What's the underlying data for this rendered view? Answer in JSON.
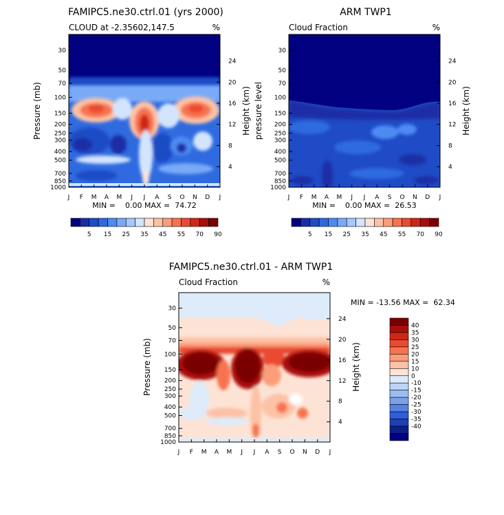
{
  "chart_data": [
    {
      "type": "heatmap",
      "title": "FAMIPC5.ne30.ctrl.01 (yrs 2000)",
      "subtitle": "CLOUD at -2.35602,147.5",
      "units": "%",
      "ylabel": "Pressure (mb)",
      "ylabel_right": "Height (km)",
      "stats": "MIN =    0.00 MAX =  74.72",
      "months": [
        "J",
        "F",
        "M",
        "A",
        "M",
        "J",
        "J",
        "A",
        "S",
        "O",
        "N",
        "D",
        "J"
      ],
      "pressure_ticks": [
        30,
        50,
        70,
        100,
        150,
        200,
        250,
        300,
        400,
        500,
        700,
        850,
        1000
      ],
      "height_ticks": [
        24,
        20,
        16,
        12,
        8,
        4
      ],
      "ylim": [
        1000,
        20
      ],
      "colorbar": {
        "colors": [
          "#000080",
          "#1b2da6",
          "#1f4bc6",
          "#2f6ae0",
          "#4d8bf2",
          "#79aaf8",
          "#a6c8fb",
          "#d2e5fd",
          "#fde3d5",
          "#fcc2a6",
          "#fb9d78",
          "#f7734f",
          "#ea4a32",
          "#cf2717",
          "#a90f0a",
          "#7a0000"
        ],
        "labels": [
          "5",
          "15",
          "25",
          "35",
          "45",
          "55",
          "70",
          "90"
        ]
      }
    },
    {
      "type": "heatmap",
      "title": "ARM TWP1",
      "subtitle": "Cloud Fraction",
      "units": "%",
      "ylabel": "pressure level",
      "ylabel_right": "Height (km)",
      "stats": "MIN =    0.00 MAX =  26.53",
      "months": [
        "J",
        "F",
        "M",
        "A",
        "M",
        "J",
        "J",
        "A",
        "S",
        "O",
        "N",
        "D",
        "J"
      ],
      "pressure_ticks": [
        30,
        50,
        70,
        100,
        150,
        200,
        250,
        300,
        400,
        500,
        700,
        850,
        1000
      ],
      "height_ticks": [
        24,
        20,
        16,
        12,
        8,
        4
      ],
      "ylim": [
        1000,
        20
      ],
      "colorbar": {
        "colors": [
          "#000080",
          "#1b2da6",
          "#1f4bc6",
          "#2f6ae0",
          "#4d8bf2",
          "#79aaf8",
          "#a6c8fb",
          "#d2e5fd",
          "#fde3d5",
          "#fcc2a6",
          "#fb9d78",
          "#f7734f",
          "#ea4a32",
          "#cf2717",
          "#a90f0a",
          "#7a0000"
        ],
        "labels": [
          "5",
          "15",
          "25",
          "35",
          "45",
          "55",
          "70",
          "90"
        ]
      }
    },
    {
      "type": "heatmap",
      "title": "FAMIPC5.ne30.ctrl.01 - ARM TWP1",
      "subtitle": "Cloud Fraction",
      "units": "%",
      "ylabel": "Pressure (mb)",
      "ylabel_right": "Height (km)",
      "stats": "MIN = -13.56 MAX =  62.34",
      "months": [
        "J",
        "F",
        "M",
        "A",
        "M",
        "J",
        "J",
        "A",
        "S",
        "O",
        "N",
        "D",
        "J"
      ],
      "pressure_ticks": [
        30,
        50,
        70,
        100,
        150,
        200,
        250,
        300,
        400,
        500,
        700,
        850,
        1000
      ],
      "height_ticks": [
        24,
        20,
        16,
        12,
        8,
        4
      ],
      "ylim": [
        1000,
        20
      ],
      "colorbar": {
        "colors": [
          "#7a0000",
          "#a90f0a",
          "#cf2717",
          "#ea4a32",
          "#f7734f",
          "#fb9d78",
          "#fcc2a6",
          "#fde3d5",
          "#ddebfa",
          "#bcd4f6",
          "#9bbdf1",
          "#7aa2ec",
          "#5483e4",
          "#2f5edb",
          "#1f3fb3",
          "#0b1f8a",
          "#000080"
        ],
        "labels": [
          "40",
          "35",
          "30",
          "25",
          "20",
          "15",
          "10",
          "0",
          "-10",
          "-15",
          "-20",
          "-25",
          "-30",
          "-35",
          "-40"
        ]
      }
    }
  ]
}
